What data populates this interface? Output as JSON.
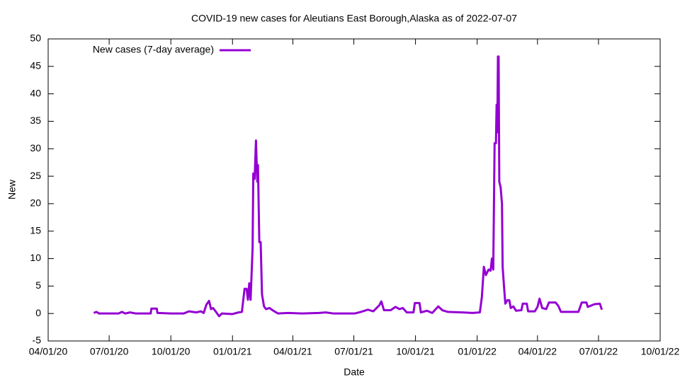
{
  "chart_data": {
    "type": "line",
    "title": "COVID-19 new cases for Aleutians East Borough,Alaska as of 2022-07-07",
    "xlabel": "Date",
    "ylabel": "New",
    "legend": "top-left",
    "x": [
      "2020-06-08",
      "2020-06-12",
      "2020-06-16",
      "2020-07-15",
      "2020-07-20",
      "2020-07-25",
      "2020-08-01",
      "2020-08-10",
      "2020-09-01",
      "2020-09-02",
      "2020-09-10",
      "2020-09-11",
      "2020-10-01",
      "2020-10-20",
      "2020-10-28",
      "2020-11-08",
      "2020-11-15",
      "2020-11-19",
      "2020-11-23",
      "2020-11-27",
      "2020-11-30",
      "2020-12-03",
      "2020-12-08",
      "2020-12-12",
      "2020-12-16",
      "2021-01-01",
      "2021-01-10",
      "2021-01-15",
      "2021-01-19",
      "2021-01-22",
      "2021-01-24",
      "2021-01-26",
      "2021-01-28",
      "2021-01-31",
      "2021-02-01",
      "2021-02-03",
      "2021-02-05",
      "2021-02-07",
      "2021-02-08",
      "2021-02-10",
      "2021-02-12",
      "2021-02-14",
      "2021-02-17",
      "2021-02-20",
      "2021-02-25",
      "2021-03-03",
      "2021-03-10",
      "2021-03-25",
      "2021-04-15",
      "2021-05-10",
      "2021-05-20",
      "2021-06-01",
      "2021-07-02",
      "2021-07-12",
      "2021-07-22",
      "2021-07-30",
      "2021-08-08",
      "2021-08-11",
      "2021-08-15",
      "2021-08-25",
      "2021-09-01",
      "2021-09-07",
      "2021-09-12",
      "2021-09-18",
      "2021-09-28",
      "2021-09-30",
      "2021-10-07",
      "2021-10-09",
      "2021-10-18",
      "2021-10-26",
      "2021-11-04",
      "2021-11-10",
      "2021-11-18",
      "2021-12-10",
      "2021-12-25",
      "2022-01-05",
      "2022-01-08",
      "2022-01-11",
      "2022-01-14",
      "2022-01-18",
      "2022-01-21",
      "2022-01-23",
      "2022-01-25",
      "2022-01-27",
      "2022-01-29",
      "2022-01-30",
      "2022-01-31",
      "2022-02-01",
      "2022-02-02",
      "2022-02-03",
      "2022-02-05",
      "2022-02-07",
      "2022-02-08",
      "2022-02-10",
      "2022-02-12",
      "2022-02-15",
      "2022-02-18",
      "2022-02-20",
      "2022-02-24",
      "2022-02-28",
      "2022-03-08",
      "2022-03-10",
      "2022-03-16",
      "2022-03-18",
      "2022-03-28",
      "2022-04-01",
      "2022-04-04",
      "2022-04-08",
      "2022-04-14",
      "2022-04-18",
      "2022-04-28",
      "2022-05-02",
      "2022-05-06",
      "2022-06-01",
      "2022-06-06",
      "2022-06-13",
      "2022-06-15",
      "2022-06-25",
      "2022-07-03",
      "2022-07-06"
    ],
    "series": [
      {
        "name": "New cases (7-day average)",
        "color": "#9400d3",
        "values": [
          0.1,
          0.3,
          0,
          0,
          0.3,
          0,
          0.2,
          0,
          0,
          0.9,
          0.9,
          0.1,
          0,
          0,
          0.4,
          0.2,
          0.4,
          0.1,
          1.6,
          2.3,
          0.8,
          1.0,
          0.2,
          -0.5,
          0,
          -0.1,
          0.2,
          0.3,
          4.5,
          4.5,
          2.5,
          5.5,
          2.5,
          12,
          25.5,
          24.5,
          31.5,
          24,
          27,
          13,
          13,
          3.5,
          1.3,
          0.8,
          1,
          0.5,
          0,
          0.1,
          0,
          0.1,
          0.2,
          0,
          0,
          0.3,
          0.7,
          0.4,
          1.5,
          2.2,
          0.6,
          0.6,
          1.2,
          0.8,
          1.0,
          0.2,
          0.2,
          1.9,
          1.9,
          0.2,
          0.5,
          0.1,
          1.3,
          0.6,
          0.3,
          0.2,
          0.1,
          0.2,
          3,
          8.5,
          7,
          8,
          7.8,
          10,
          8,
          31,
          31,
          38,
          33,
          46.8,
          46.8,
          24,
          23,
          20,
          8.5,
          5,
          1.8,
          2.4,
          2.4,
          1.0,
          1.3,
          0.5,
          0.6,
          1.8,
          1.8,
          0.4,
          0.4,
          1.2,
          2.7,
          1.0,
          0.8,
          2.0,
          2.0,
          1.4,
          0.3,
          0.3,
          2.0,
          2.0,
          1.2,
          1.7,
          1.8,
          0.7
        ]
      }
    ],
    "xlim": [
      "2020-04-01",
      "2022-10-01"
    ],
    "xticks": [
      {
        "value": "2020-04-01",
        "label": "04/01/20"
      },
      {
        "value": "2020-07-01",
        "label": "07/01/20"
      },
      {
        "value": "2020-10-01",
        "label": "10/01/20"
      },
      {
        "value": "2021-01-01",
        "label": "01/01/21"
      },
      {
        "value": "2021-04-01",
        "label": "04/01/21"
      },
      {
        "value": "2021-07-01",
        "label": "07/01/21"
      },
      {
        "value": "2021-10-01",
        "label": "10/01/21"
      },
      {
        "value": "2022-01-01",
        "label": "01/01/22"
      },
      {
        "value": "2022-04-01",
        "label": "04/01/22"
      },
      {
        "value": "2022-07-01",
        "label": "07/01/22"
      },
      {
        "value": "2022-10-01",
        "label": "10/01/22"
      }
    ],
    "ylim": [
      -5,
      50
    ],
    "yticks": [
      -5,
      0,
      5,
      10,
      15,
      20,
      25,
      30,
      35,
      40,
      45,
      50
    ]
  }
}
